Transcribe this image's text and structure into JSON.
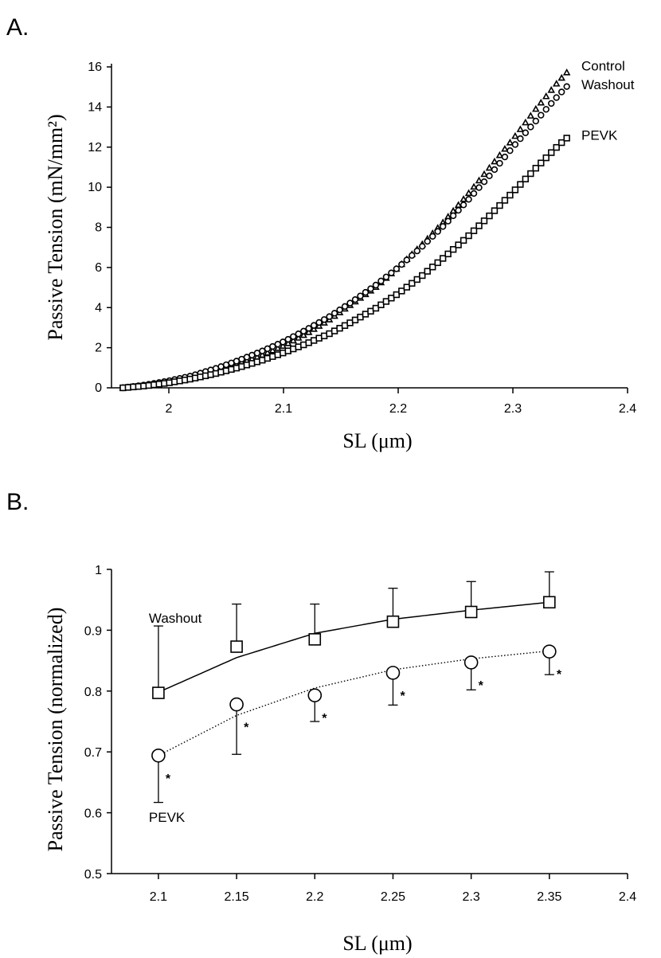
{
  "panels": [
    {
      "letter": "A.",
      "chart_data": {
        "type": "scatter",
        "xlabel": "SL (μm)",
        "ylabel": "Passive Tension (mN/mm²)",
        "xlim": [
          1.95,
          2.4
        ],
        "ylim": [
          0,
          16
        ],
        "xticks": [
          "2",
          "2.1",
          "2.2",
          "2.3",
          "2.4"
        ],
        "yticks": [
          "0",
          "2",
          "4",
          "6",
          "8",
          "10",
          "12",
          "14",
          "16"
        ],
        "grid": false,
        "legend_placement": "right end of each series",
        "series": [
          {
            "name": "Control",
            "marker": "triangle",
            "x": [
              1.96,
              1.98,
              2.0,
              2.02,
              2.04,
              2.06,
              2.08,
              2.1,
              2.12,
              2.14,
              2.16,
              2.18,
              2.2,
              2.22,
              2.24,
              2.26,
              2.28,
              2.3,
              2.32,
              2.34,
              2.35
            ],
            "y": [
              0.0,
              0.1,
              0.3,
              0.55,
              0.85,
              1.2,
              1.6,
              2.1,
              2.7,
              3.4,
              4.2,
              5.0,
              6.0,
              7.1,
              8.3,
              9.6,
              11.0,
              12.4,
              13.9,
              15.3,
              15.9
            ]
          },
          {
            "name": "Washout",
            "marker": "circle",
            "x": [
              1.96,
              1.98,
              2.0,
              2.02,
              2.04,
              2.06,
              2.08,
              2.1,
              2.12,
              2.14,
              2.16,
              2.18,
              2.2,
              2.22,
              2.24,
              2.26,
              2.28,
              2.3,
              2.32,
              2.34,
              2.35
            ],
            "y": [
              0.0,
              0.15,
              0.35,
              0.6,
              0.95,
              1.35,
              1.8,
              2.3,
              2.9,
              3.55,
              4.3,
              5.1,
              6.0,
              7.0,
              8.1,
              9.3,
              10.6,
              12.0,
              13.3,
              14.6,
              15.2
            ]
          },
          {
            "name": "PEVK",
            "marker": "square",
            "x": [
              1.96,
              1.98,
              2.0,
              2.02,
              2.04,
              2.06,
              2.08,
              2.1,
              2.12,
              2.14,
              2.16,
              2.18,
              2.2,
              2.22,
              2.24,
              2.26,
              2.28,
              2.3,
              2.32,
              2.34,
              2.35
            ],
            "y": [
              0.0,
              0.1,
              0.25,
              0.45,
              0.7,
              1.0,
              1.35,
              1.75,
              2.2,
              2.7,
              3.3,
              3.95,
              4.7,
              5.55,
              6.5,
              7.5,
              8.6,
              9.75,
              10.95,
              12.1,
              12.6
            ]
          }
        ]
      }
    },
    {
      "letter": "B.",
      "chart_data": {
        "type": "line",
        "xlabel": "SL (μm)",
        "ylabel": "Passive Tension (normalized)",
        "xlim": [
          2.07,
          2.4
        ],
        "ylim": [
          0.5,
          1
        ],
        "xticks": [
          "2.1",
          "2.15",
          "2.2",
          "2.25",
          "2.3",
          "2.35",
          "2.4"
        ],
        "yticks": [
          "0.5",
          "0.6",
          "0.7",
          "0.8",
          "0.9",
          "1"
        ],
        "grid": false,
        "annotation": "*",
        "series": [
          {
            "name": "Washout",
            "marker": "square",
            "line": "solid",
            "x": [
              2.1,
              2.15,
              2.2,
              2.25,
              2.3,
              2.35
            ],
            "y": [
              0.797,
              0.873,
              0.885,
              0.914,
              0.93,
              0.946
            ],
            "error": [
              0.11,
              0.07,
              0.058,
              0.055,
              0.05,
              0.05
            ],
            "error_direction": "up",
            "fit": [
              0.798,
              0.855,
              0.895,
              0.918,
              0.933,
              0.946
            ],
            "significant": [
              false,
              false,
              false,
              false,
              false,
              false
            ]
          },
          {
            "name": "PEVK",
            "marker": "circle",
            "line": "dotted",
            "x": [
              2.1,
              2.15,
              2.2,
              2.25,
              2.3,
              2.35
            ],
            "y": [
              0.694,
              0.778,
              0.793,
              0.83,
              0.847,
              0.865
            ],
            "error": [
              0.077,
              0.082,
              0.043,
              0.053,
              0.045,
              0.038
            ],
            "error_direction": "down",
            "fit": [
              0.694,
              0.76,
              0.805,
              0.835,
              0.853,
              0.866
            ],
            "significant": [
              true,
              true,
              true,
              true,
              true,
              true
            ]
          }
        ]
      }
    }
  ]
}
